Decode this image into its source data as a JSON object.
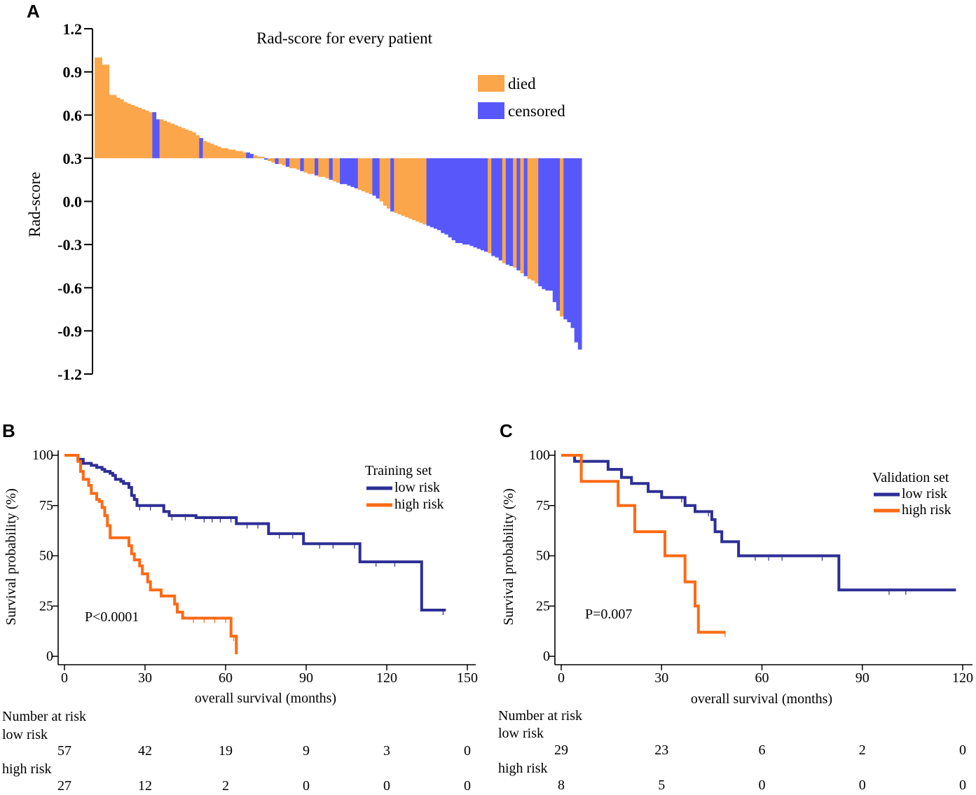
{
  "panel_a": {
    "letter": "A",
    "chart_data": {
      "type": "bar",
      "title": "Rad-score for every patient",
      "ylabel": "Rad-score",
      "ylim": [
        -1.2,
        1.2
      ],
      "yticks": [
        "1.2",
        "0.9",
        "0.6",
        "0.3",
        "0.0",
        "-0.3",
        "-0.6",
        "-0.9",
        "-1.2"
      ],
      "baseline": 0.3,
      "legend": [
        {
          "label": "died",
          "color": "#fba64b"
        },
        {
          "label": "censored",
          "color": "#5858fa"
        }
      ],
      "series_note": "patients sorted by Rad-score, bars drawn from baseline 0.3",
      "values": [
        1.0,
        1.0,
        0.95,
        0.95,
        0.74,
        0.74,
        0.72,
        0.71,
        0.69,
        0.68,
        0.67,
        0.66,
        0.65,
        0.64,
        0.63,
        0.62,
        0.62,
        0.57,
        0.57,
        0.56,
        0.55,
        0.54,
        0.53,
        0.52,
        0.51,
        0.5,
        0.49,
        0.48,
        0.46,
        0.44,
        0.42,
        0.41,
        0.4,
        0.39,
        0.38,
        0.37,
        0.37,
        0.36,
        0.36,
        0.35,
        0.35,
        0.34,
        0.34,
        0.33,
        0.32,
        0.31,
        0.31,
        0.29,
        0.28,
        0.27,
        0.26,
        0.26,
        0.25,
        0.24,
        0.23,
        0.23,
        0.22,
        0.21,
        0.2,
        0.19,
        0.19,
        0.18,
        0.17,
        0.17,
        0.16,
        0.15,
        0.14,
        0.13,
        0.12,
        0.12,
        0.11,
        0.1,
        0.09,
        0.08,
        0.07,
        0.06,
        0.05,
        0.04,
        0.02,
        0.0,
        -0.03,
        -0.05,
        -0.07,
        -0.08,
        -0.09,
        -0.1,
        -0.11,
        -0.12,
        -0.13,
        -0.14,
        -0.15,
        -0.16,
        -0.17,
        -0.18,
        -0.19,
        -0.2,
        -0.22,
        -0.23,
        -0.25,
        -0.27,
        -0.29,
        -0.29,
        -0.3,
        -0.3,
        -0.31,
        -0.32,
        -0.33,
        -0.34,
        -0.35,
        -0.36,
        -0.38,
        -0.39,
        -0.41,
        -0.43,
        -0.44,
        -0.45,
        -0.46,
        -0.48,
        -0.5,
        -0.52,
        -0.54,
        -0.55,
        -0.57,
        -0.59,
        -0.61,
        -0.62,
        -0.62,
        -0.7,
        -0.76,
        -0.8,
        -0.82,
        -0.84,
        -0.88,
        -0.98,
        -1.03
      ],
      "status": [
        "d",
        "d",
        "d",
        "d",
        "d",
        "d",
        "d",
        "d",
        "d",
        "d",
        "d",
        "d",
        "d",
        "d",
        "d",
        "d",
        "c",
        "c",
        "d",
        "d",
        "d",
        "d",
        "d",
        "d",
        "d",
        "d",
        "d",
        "d",
        "d",
        "c",
        "d",
        "d",
        "d",
        "d",
        "d",
        "d",
        "d",
        "d",
        "d",
        "d",
        "d",
        "d",
        "c",
        "c",
        "d",
        "d",
        "d",
        "c",
        "d",
        "d",
        "c",
        "d",
        "d",
        "c",
        "d",
        "d",
        "d",
        "c",
        "d",
        "d",
        "d",
        "c",
        "d",
        "d",
        "d",
        "c",
        "d",
        "d",
        "c",
        "c",
        "c",
        "c",
        "c",
        "d",
        "d",
        "d",
        "d",
        "c",
        "c",
        "d",
        "d",
        "d",
        "c",
        "d",
        "d",
        "d",
        "d",
        "d",
        "d",
        "d",
        "d",
        "d",
        "c",
        "c",
        "c",
        "c",
        "c",
        "c",
        "c",
        "c",
        "c",
        "c",
        "c",
        "c",
        "c",
        "c",
        "c",
        "c",
        "c",
        "d",
        "c",
        "c",
        "c",
        "d",
        "c",
        "c",
        "d",
        "c",
        "d",
        "c",
        "d",
        "d",
        "d",
        "c",
        "c",
        "c",
        "c",
        "c",
        "c",
        "d",
        "c",
        "c",
        "c",
        "c",
        "c",
        "c"
      ]
    }
  },
  "panel_b": {
    "letter": "B",
    "chart_data": {
      "type": "line",
      "subtype": "kaplan-meier",
      "legend_title": "Training set",
      "xlabel": "overall survival (months)",
      "ylabel": "Survival probability (%)",
      "xlim": [
        0,
        150
      ],
      "ylim": [
        0,
        100
      ],
      "xticks": [
        "0",
        "30",
        "60",
        "90",
        "120",
        "150"
      ],
      "yticks": [
        "100",
        "75",
        "50",
        "25",
        "0"
      ],
      "pvalue": "P<0.0001",
      "series": [
        {
          "name": "low risk",
          "color": "#2e2e96",
          "x": [
            0,
            5,
            7,
            10,
            12,
            14,
            15,
            17,
            18,
            19,
            21,
            22,
            24,
            25,
            26,
            27,
            37,
            39,
            49,
            64,
            76,
            89,
            110,
            133,
            142
          ],
          "y": [
            100,
            98,
            96,
            95,
            94,
            93,
            92,
            91,
            90,
            88,
            87,
            86,
            84,
            80,
            78,
            75,
            72,
            70,
            69,
            66,
            61,
            56,
            47,
            23,
            23
          ],
          "censor_x": [
            28,
            32,
            40,
            45,
            52,
            55,
            58,
            62,
            68,
            72,
            80,
            85,
            95,
            100,
            108,
            116,
            123,
            141
          ]
        },
        {
          "name": "high risk",
          "color": "#ff6a13",
          "x": [
            0,
            5,
            6,
            7,
            9,
            10,
            12,
            13,
            14,
            15,
            16,
            17,
            18,
            24,
            25,
            26,
            28,
            29,
            31,
            32,
            36,
            41,
            42,
            44,
            62,
            64
          ],
          "y": [
            100,
            97,
            92,
            88,
            85,
            81,
            78,
            77,
            74,
            70,
            65,
            59,
            59,
            55,
            51,
            48,
            45,
            41,
            37,
            33,
            30,
            26,
            22,
            19,
            10,
            1
          ],
          "censor_x": [
            48,
            52,
            56,
            60,
            63
          ]
        }
      ],
      "risk_table": {
        "title": "Number at risk",
        "rows": [
          {
            "label": "low risk",
            "values": [
              "57",
              "42",
              "19",
              "9",
              "3",
              "0"
            ]
          },
          {
            "label": "high risk",
            "values": [
              "27",
              "12",
              "2",
              "0",
              "0",
              "0"
            ]
          }
        ]
      }
    }
  },
  "panel_c": {
    "letter": "C",
    "chart_data": {
      "type": "line",
      "subtype": "kaplan-meier",
      "legend_title": "Validation set",
      "xlabel": "overall survival (months)",
      "ylabel": "Survival probability (%)",
      "xlim": [
        0,
        120
      ],
      "ylim": [
        0,
        100
      ],
      "xticks": [
        "0",
        "30",
        "60",
        "90",
        "120"
      ],
      "yticks": [
        "100",
        "75",
        "50",
        "25",
        "0"
      ],
      "pvalue": "P=0.007",
      "series": [
        {
          "name": "low risk",
          "color": "#2e2e96",
          "x": [
            0,
            4,
            14,
            18,
            21,
            26,
            30,
            37,
            40,
            45,
            46,
            48,
            53,
            83,
            118
          ],
          "y": [
            100,
            97,
            93,
            89,
            86,
            82,
            79,
            75,
            72,
            68,
            62,
            57,
            50,
            33,
            33
          ],
          "censor_x": [
            36,
            44,
            58,
            62,
            66,
            78,
            98,
            103
          ]
        },
        {
          "name": "high risk",
          "color": "#ff6a13",
          "x": [
            0,
            6,
            17,
            22,
            31,
            37,
            40,
            41,
            49
          ],
          "y": [
            100,
            87,
            75,
            62,
            50,
            37,
            25,
            12,
            12
          ],
          "censor_x": [
            49
          ]
        }
      ],
      "risk_table": {
        "title": "Number at risk",
        "rows": [
          {
            "label": "low risk",
            "values": [
              "29",
              "23",
              "6",
              "2",
              "0"
            ]
          },
          {
            "label": "high risk",
            "values": [
              "8",
              "5",
              "0",
              "0",
              "0"
            ]
          }
        ]
      }
    }
  }
}
